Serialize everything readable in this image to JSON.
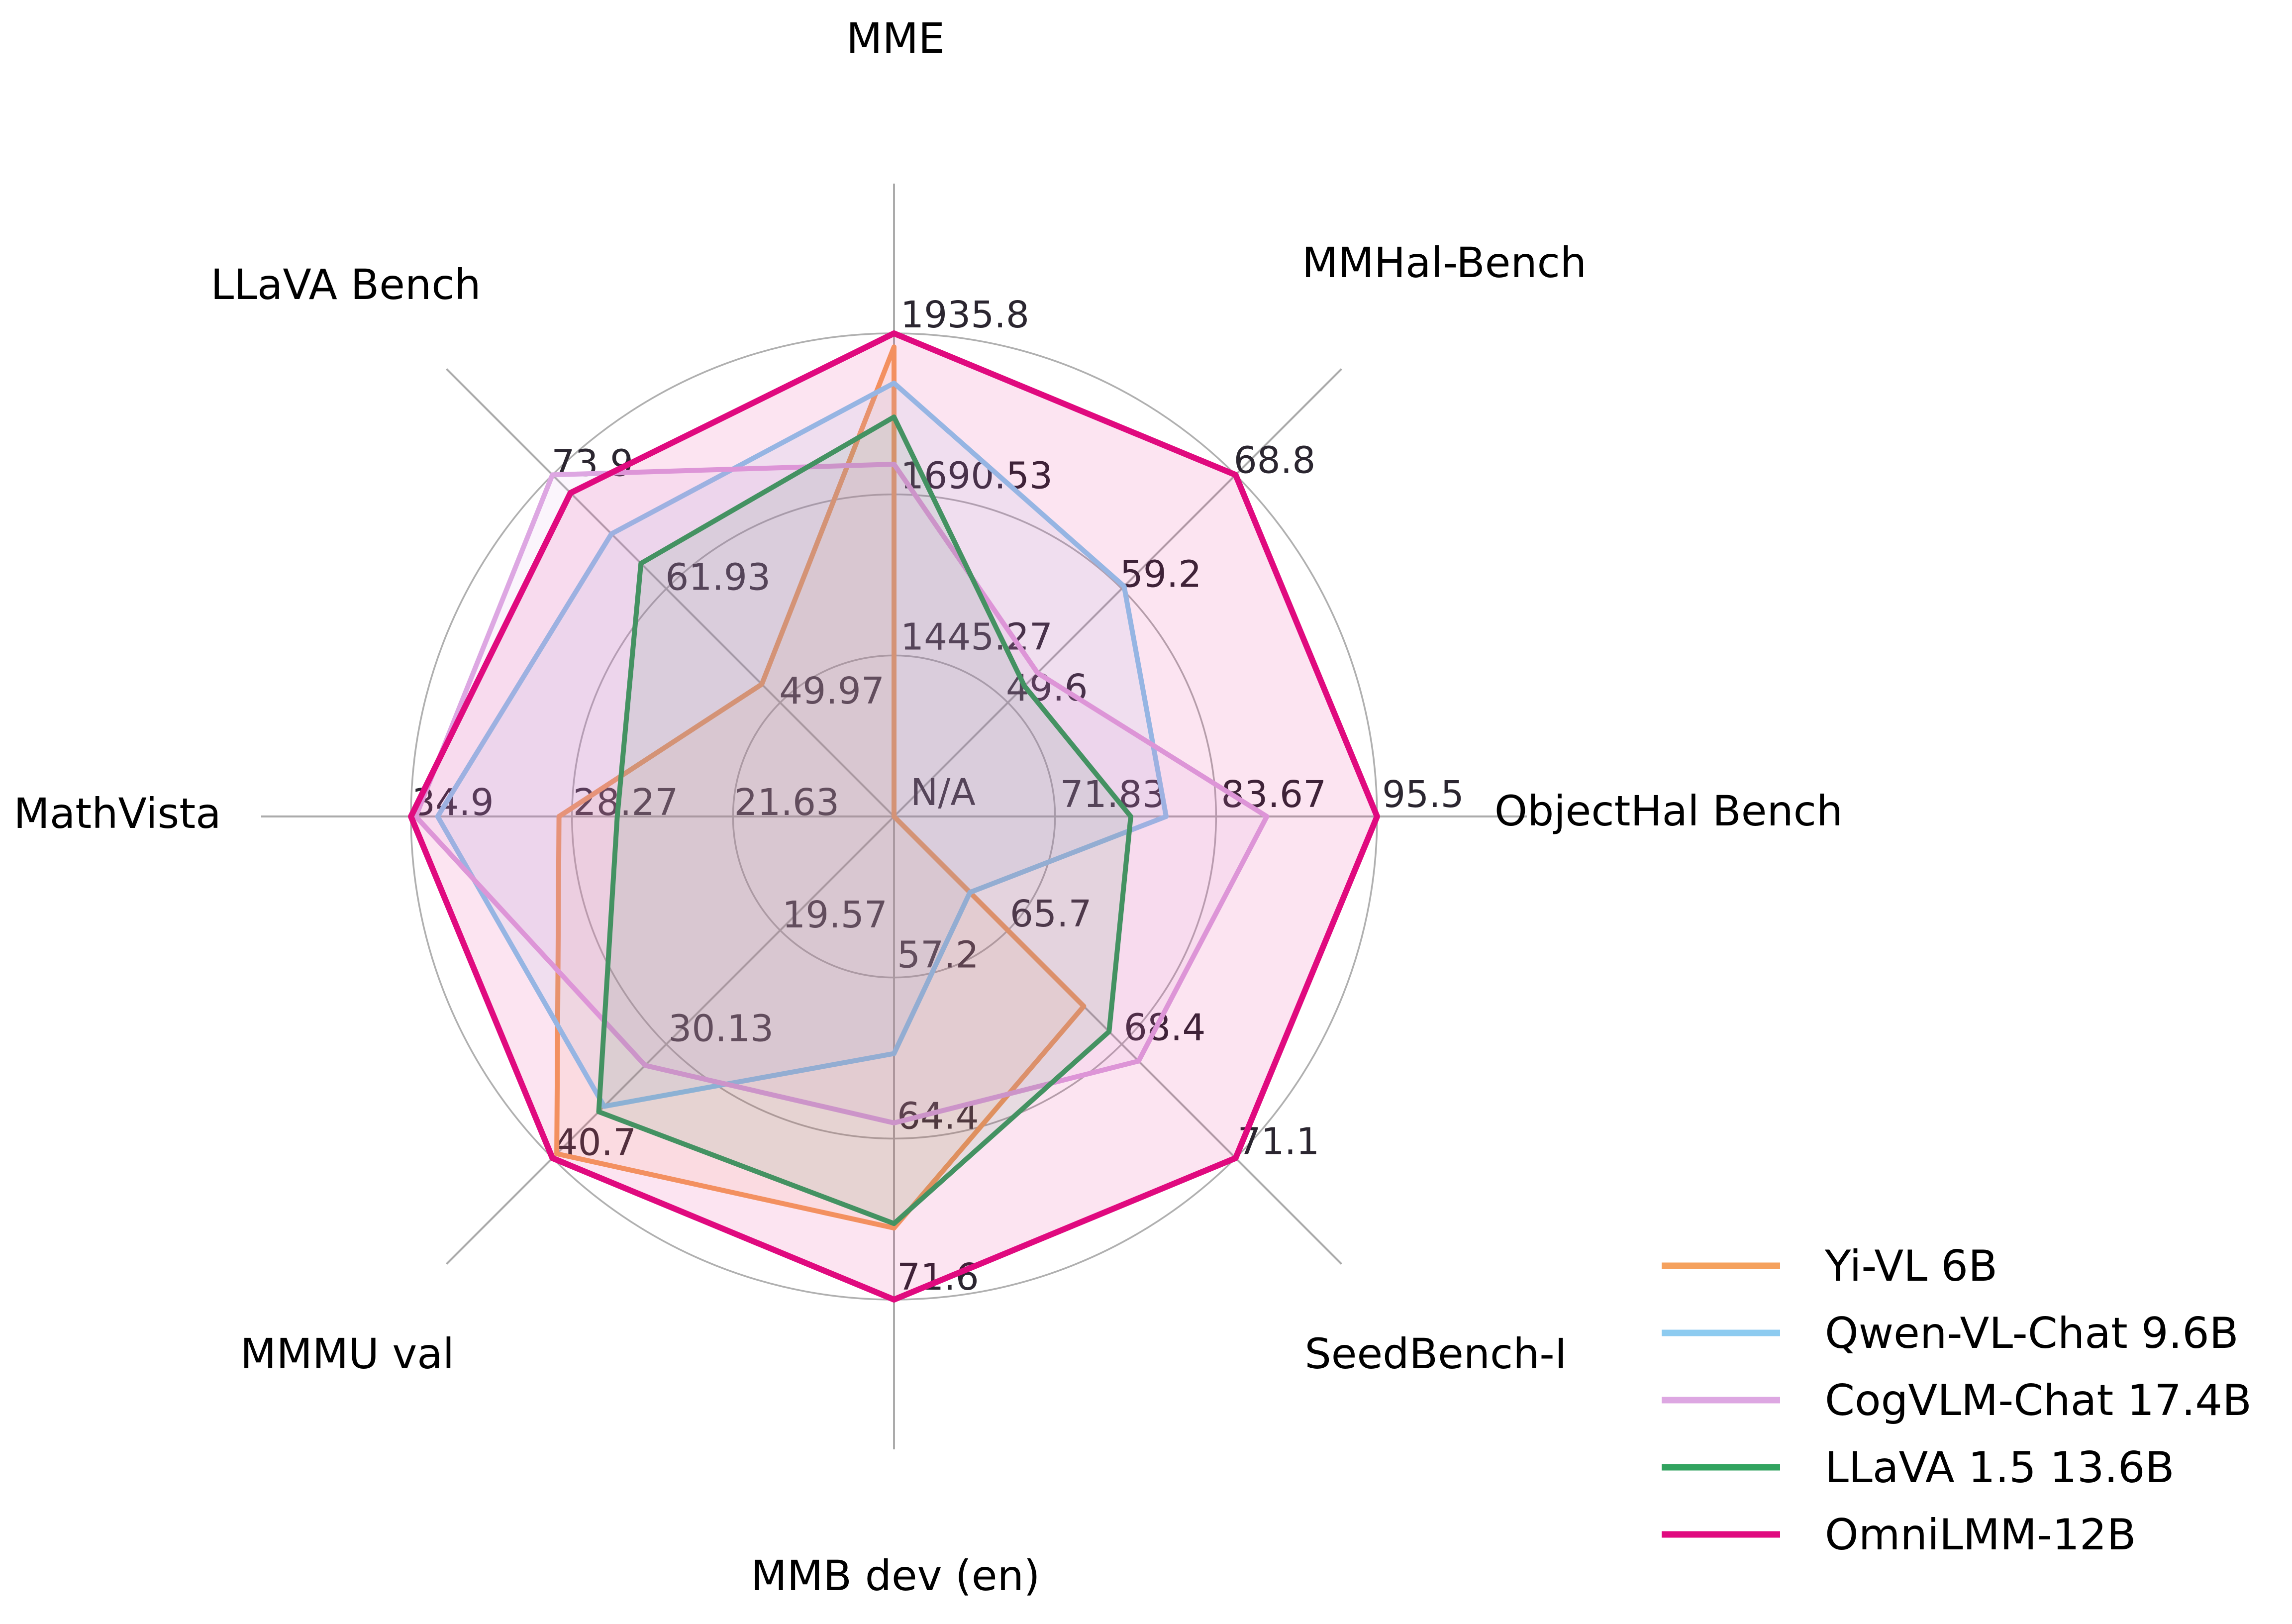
{
  "chart_data": {
    "type": "radar",
    "title": "",
    "grid": {
      "rings": 3,
      "ring_color": "#B0B0B0",
      "spoke_color": "#ABABAB",
      "spoke_extension": 1.31
    },
    "tick_color": "#2B2630",
    "axis_title_color": "#000000",
    "background_color": "#FFFFFF",
    "axes": [
      {
        "label": "MME",
        "min": 1200,
        "max": 1935.8,
        "tick_labels": [
          "1445.27",
          "1690.53",
          "1935.8"
        ],
        "center_label": null
      },
      {
        "label": "MMHal-Bench",
        "min": 40,
        "max": 68.8,
        "tick_labels": [
          "49.6",
          "59.2",
          "68.8"
        ],
        "center_label": null
      },
      {
        "label": "ObjectHal Bench",
        "min": 60,
        "max": 95.5,
        "tick_labels": [
          "71.83",
          "83.67",
          "95.5"
        ],
        "center_label": "N/A"
      },
      {
        "label": "SeedBench-I",
        "min": 63,
        "max": 71.1,
        "tick_labels": [
          "65.7",
          "68.4",
          "71.1"
        ],
        "center_label": null
      },
      {
        "label": "MMB dev (en)",
        "min": 50,
        "max": 71.6,
        "tick_labels": [
          "57.2",
          "64.4",
          "71.6"
        ],
        "center_label": null
      },
      {
        "label": "MMMU val",
        "min": 9,
        "max": 40.7,
        "tick_labels": [
          "19.57",
          "30.13",
          "40.7"
        ],
        "center_label": null
      },
      {
        "label": "MathVista",
        "min": 15,
        "max": 34.9,
        "tick_labels": [
          "21.63",
          "28.27",
          "34.9"
        ],
        "center_label": null
      },
      {
        "label": "LLaVA Bench",
        "min": 38,
        "max": 73.9,
        "tick_labels": [
          "49.97",
          "61.93",
          "73.9"
        ],
        "center_label": null
      }
    ],
    "series": [
      {
        "name": "Yi-VL 6B",
        "color": "#F5A15D",
        "line_width": 10,
        "values": [
          1915.1,
          null,
          null,
          67.5,
          68.4,
          40.3,
          28.8,
          51.9
        ]
      },
      {
        "name": "Qwen-VL-Chat 9.6B",
        "color": "#8DCBF0",
        "line_width": 10,
        "values": [
          1860.0,
          59.4,
          80.0,
          64.8,
          60.6,
          35.9,
          33.8,
          67.7
        ]
      },
      {
        "name": "CogVLM-Chat 17.4B",
        "color": "#DDA7E2",
        "line_width": 10,
        "values": [
          1736.6,
          52.1,
          87.4,
          68.8,
          63.7,
          32.1,
          34.7,
          73.9
        ]
      },
      {
        "name": "LLaVA 1.5 13.6B",
        "color": "#31A35F",
        "line_width": 10,
        "values": [
          1808.4,
          51.0,
          77.4,
          68.1,
          68.2,
          36.4,
          26.4,
          64.6
        ]
      },
      {
        "name": "OmniLMM-12B",
        "color": "#E00A7F",
        "line_width": 12,
        "values": [
          1935.8,
          68.8,
          95.5,
          71.1,
          71.6,
          40.7,
          34.9,
          72.0
        ]
      }
    ],
    "fill_opacity": 0.11,
    "legend": {
      "position": "bottom-right",
      "entries": [
        "Yi-VL 6B",
        "Qwen-VL-Chat 9.6B",
        "CogVLM-Chat 17.4B",
        "LLaVA 1.5 13.6B",
        "OmniLMM-12B"
      ]
    }
  }
}
